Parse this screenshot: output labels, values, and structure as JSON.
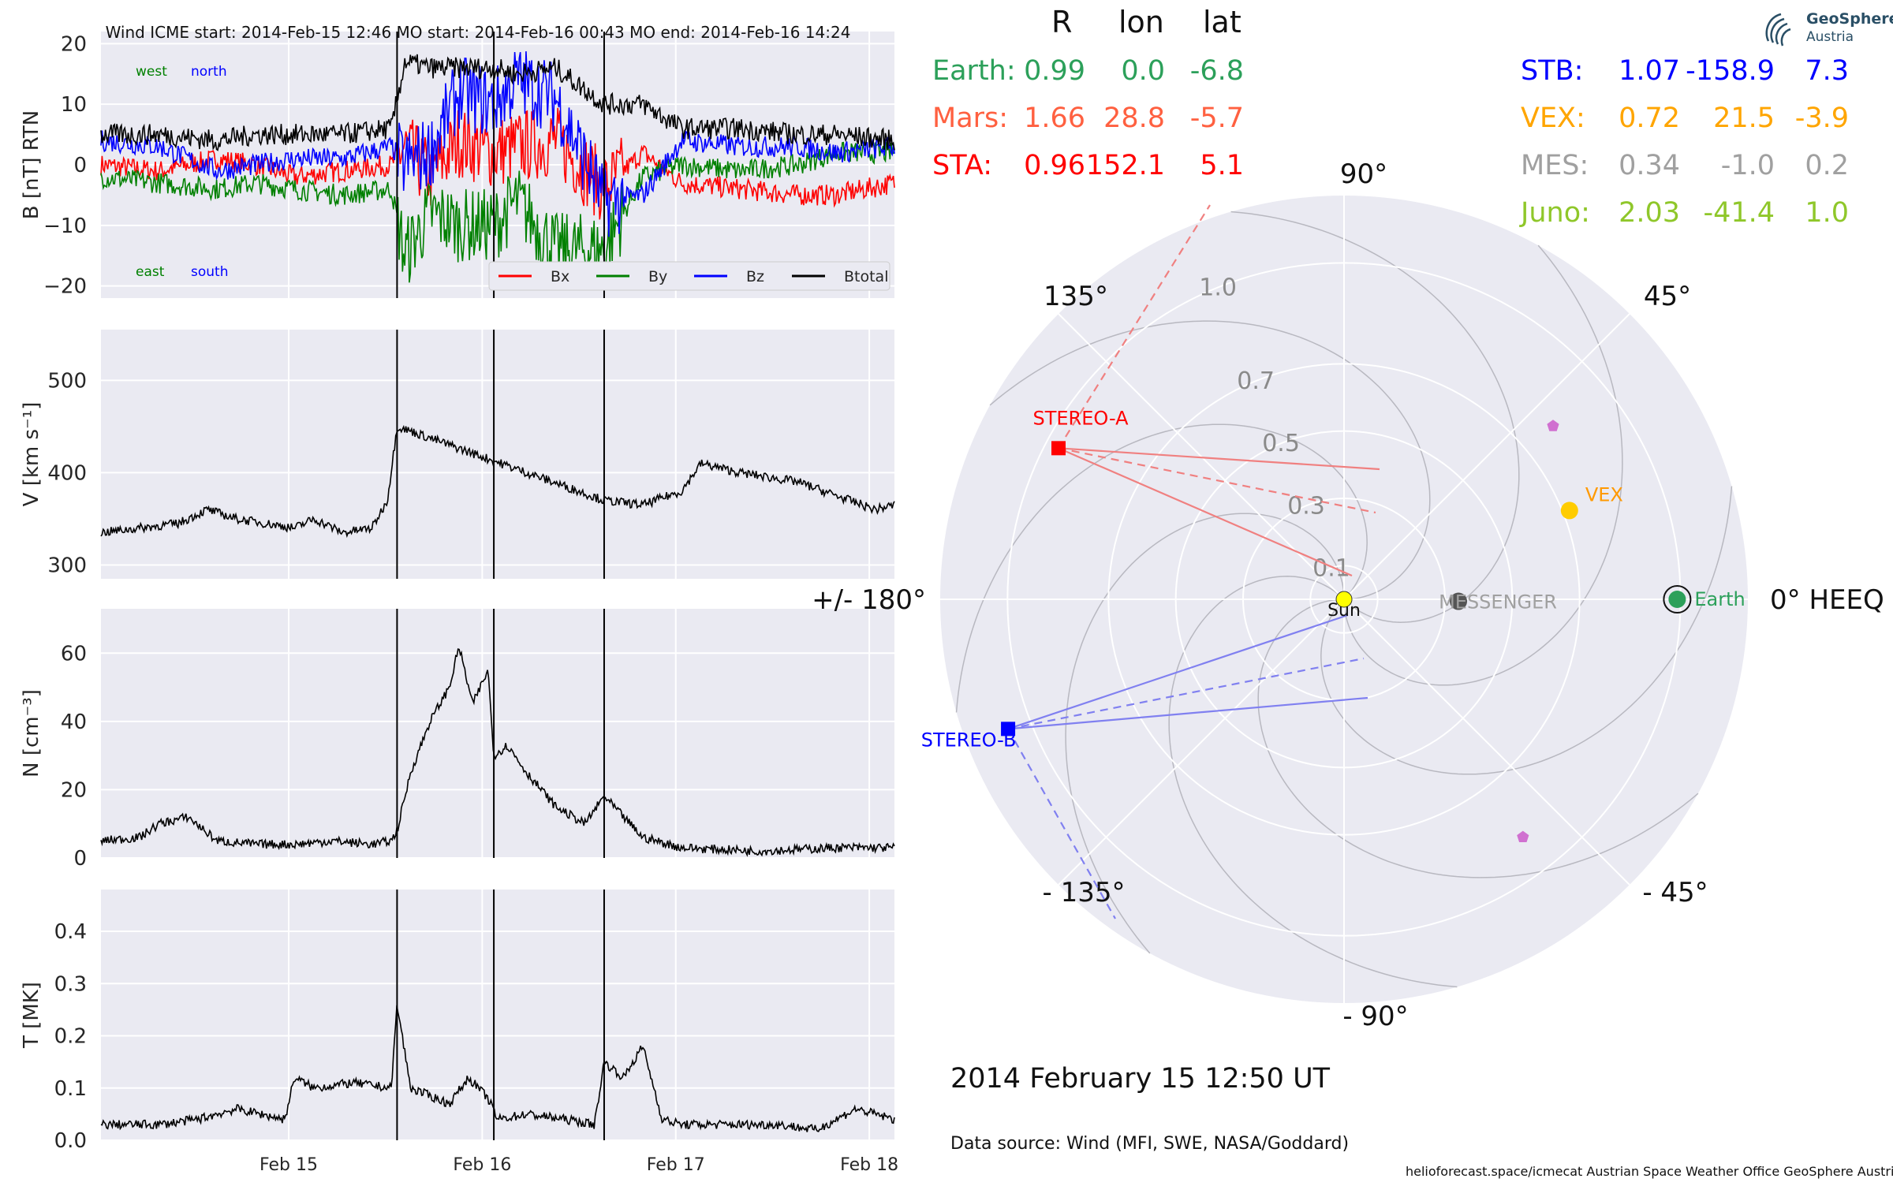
{
  "chart_data": [
    {
      "type": "line",
      "panel": "magnetic-field",
      "title": "Wind    ICME start: 2014-Feb-15 12:46   MO start: 2014-Feb-16 00:43   MO end: 2014-Feb-16 14:24",
      "ylabel": "B [nT] RTN",
      "ylim": [
        -22,
        22
      ],
      "yticks": [
        20,
        10,
        0,
        -10,
        -20
      ],
      "ytick_labels": [
        "20",
        "10",
        "0",
        "−10",
        "−20"
      ],
      "direction_labels": {
        "west": "west",
        "north": "north",
        "east": "east",
        "south": "south"
      },
      "legend": "bottom-right",
      "series": [
        {
          "name": "Bx",
          "color": "#ff0000",
          "t": [
            0,
            0.3,
            0.6,
            0.8,
            1.0,
            1.25,
            1.5,
            1.57,
            1.7,
            1.85,
            2.03,
            2.15,
            2.35,
            2.6,
            2.8,
            3.0,
            3.3,
            3.6,
            3.8,
            4.1
          ],
          "values": [
            0,
            -1,
            1,
            0,
            -2,
            -1,
            0,
            3,
            -2,
            4,
            2,
            3,
            4,
            -4,
            2,
            -3,
            -4,
            -5,
            -5,
            -3
          ]
        },
        {
          "name": "By",
          "color": "#008000",
          "t": [
            0,
            0.3,
            0.6,
            0.8,
            1.0,
            1.25,
            1.5,
            1.57,
            1.7,
            1.85,
            2.03,
            2.15,
            2.35,
            2.6,
            2.8,
            3.0,
            3.3,
            3.6,
            3.8,
            4.1
          ],
          "values": [
            -2,
            -3,
            -4,
            -3,
            -4,
            -5,
            -4,
            -15,
            -8,
            -10,
            -10,
            -6,
            -14,
            -14,
            -2,
            0,
            -1,
            0,
            2,
            2
          ]
        },
        {
          "name": "Bz",
          "color": "#0000ff",
          "t": [
            0,
            0.3,
            0.6,
            0.8,
            1.0,
            1.25,
            1.5,
            1.57,
            1.7,
            1.85,
            2.03,
            2.15,
            2.35,
            2.6,
            2.8,
            3.0,
            3.3,
            3.6,
            3.8,
            4.1
          ],
          "values": [
            4,
            3,
            -1,
            0,
            1,
            1,
            3,
            0,
            2,
            12,
            10,
            14,
            11,
            -6,
            -5,
            4,
            3,
            3,
            2,
            3
          ]
        },
        {
          "name": "Btotal",
          "color": "#000000",
          "t": [
            0,
            0.3,
            0.6,
            0.8,
            1.0,
            1.25,
            1.5,
            1.57,
            1.7,
            1.85,
            2.03,
            2.15,
            2.35,
            2.6,
            2.8,
            3.0,
            3.3,
            3.6,
            3.8,
            4.1
          ],
          "values": [
            5,
            5,
            4,
            5,
            5,
            5,
            6,
            17,
            16,
            16,
            16,
            15,
            16,
            10,
            10,
            6,
            6,
            5,
            5,
            4
          ]
        }
      ],
      "markers": [
        {
          "label": "ICME start",
          "t": 1.53
        },
        {
          "label": "MO start",
          "t": 2.03
        },
        {
          "label": "MO end",
          "t": 2.6
        }
      ],
      "xlim": [
        0,
        4.1
      ]
    },
    {
      "type": "line",
      "panel": "speed",
      "ylabel": "V [km s⁻¹]",
      "ylim": [
        285,
        555
      ],
      "yticks": [
        500,
        400,
        300
      ],
      "ytick_labels": [
        "500",
        "400",
        "300"
      ],
      "series": [
        {
          "name": "",
          "color": "#000000",
          "t": [
            0,
            0.2,
            0.4,
            0.55,
            0.7,
            0.85,
            1.0,
            1.1,
            1.25,
            1.4,
            1.48,
            1.53,
            1.6,
            1.8,
            2.0,
            2.2,
            2.4,
            2.6,
            2.8,
            3.0,
            3.1,
            3.3,
            3.6,
            3.8,
            4.0,
            4.1
          ],
          "values": [
            335,
            340,
            345,
            360,
            350,
            345,
            340,
            350,
            335,
            340,
            370,
            450,
            445,
            430,
            415,
            400,
            385,
            370,
            365,
            380,
            410,
            400,
            390,
            375,
            360,
            365
          ]
        }
      ],
      "markers": [
        {
          "label": "ICME start",
          "t": 1.53
        },
        {
          "label": "MO start",
          "t": 2.03
        },
        {
          "label": "MO end",
          "t": 2.6
        }
      ],
      "xlim": [
        0,
        4.1
      ]
    },
    {
      "type": "line",
      "panel": "density",
      "ylabel": "N [cm⁻³]",
      "ylim": [
        0,
        73
      ],
      "yticks": [
        60,
        40,
        20,
        0
      ],
      "ytick_labels": [
        "60",
        "40",
        "20",
        "0"
      ],
      "series": [
        {
          "name": "",
          "color": "#000000",
          "t": [
            0,
            0.2,
            0.3,
            0.45,
            0.6,
            0.8,
            1.0,
            1.2,
            1.4,
            1.5,
            1.53,
            1.6,
            1.7,
            1.8,
            1.85,
            1.92,
            2.0,
            2.03,
            2.1,
            2.2,
            2.35,
            2.5,
            2.6,
            2.7,
            2.8,
            3.0,
            3.4,
            3.8,
            4.1
          ],
          "values": [
            5,
            6,
            10,
            12,
            5,
            4,
            4,
            5,
            4,
            5,
            8,
            25,
            40,
            50,
            62,
            45,
            55,
            30,
            33,
            25,
            15,
            10,
            18,
            12,
            6,
            3,
            2,
            3,
            3
          ]
        }
      ],
      "markers": [
        {
          "label": "ICME start",
          "t": 1.53
        },
        {
          "label": "MO start",
          "t": 2.03
        },
        {
          "label": "MO end",
          "t": 2.6
        }
      ],
      "xlim": [
        0,
        4.1
      ]
    },
    {
      "type": "line",
      "panel": "temperature",
      "ylabel": "T [MK]",
      "ylim": [
        0,
        0.48
      ],
      "yticks": [
        0.4,
        0.3,
        0.2,
        0.1,
        0.0
      ],
      "ytick_labels": [
        "0.4",
        "0.3",
        "0.2",
        "0.1",
        "0.0"
      ],
      "xticks": [
        0.97,
        1.97,
        2.97,
        3.97
      ],
      "xtick_labels": [
        "Feb 15",
        "Feb 16",
        "Feb 17",
        "Feb 18"
      ],
      "series": [
        {
          "name": "",
          "color": "#000000",
          "t": [
            0,
            0.3,
            0.5,
            0.7,
            0.95,
            1.0,
            1.1,
            1.3,
            1.5,
            1.53,
            1.6,
            1.8,
            1.9,
            2.0,
            2.05,
            2.2,
            2.4,
            2.55,
            2.6,
            2.7,
            2.8,
            2.9,
            3.0,
            3.3,
            3.5,
            3.7,
            3.9,
            4.1
          ],
          "values": [
            0.03,
            0.03,
            0.04,
            0.06,
            0.04,
            0.12,
            0.1,
            0.11,
            0.1,
            0.26,
            0.1,
            0.07,
            0.12,
            0.08,
            0.04,
            0.05,
            0.04,
            0.03,
            0.15,
            0.12,
            0.18,
            0.04,
            0.03,
            0.03,
            0.03,
            0.02,
            0.06,
            0.04
          ]
        }
      ],
      "markers": [
        {
          "label": "ICME start",
          "t": 1.53
        },
        {
          "label": "MO start",
          "t": 2.03
        },
        {
          "label": "MO end",
          "t": 2.6
        }
      ],
      "xlim": [
        0,
        4.1
      ]
    },
    {
      "type": "scatter",
      "panel": "polar-position-plot",
      "coordinate_system": "HEEQ",
      "angle_labels": [
        "90°",
        "45°",
        "0° HEEQ",
        "- 45°",
        "- 90°",
        "- 135°",
        "+/- 180°",
        "135°"
      ],
      "radial_ticks": [
        0.1,
        0.3,
        0.5,
        0.7,
        1.0
      ],
      "radial_tick_labels": [
        "0.1",
        "0.3",
        "0.5",
        "0.7",
        "1.0"
      ],
      "rlim": [
        0,
        1.2
      ],
      "objects": [
        {
          "name": "Sun",
          "r": 0.0,
          "lon": 0.0,
          "color": "#ffff00"
        },
        {
          "name": "Earth",
          "r": 0.99,
          "lon": 0.0,
          "color": "#2ca05a"
        },
        {
          "name": "VEX",
          "r": 0.72,
          "lon": 21.5,
          "color": "#ffcc00",
          "label_color": "#ff9900"
        },
        {
          "name": "MESSENGER",
          "r": 0.34,
          "lon": -1.0,
          "color": "#555555",
          "label_color": "#a0a0a0"
        },
        {
          "name": "STEREO-A",
          "r": 0.96,
          "lon": 152.1,
          "color": "#ff0000"
        },
        {
          "name": "STEREO-B",
          "r": 1.07,
          "lon": -158.9,
          "color": "#0000ff"
        },
        {
          "name": "Mars-marker",
          "r": 1.66,
          "lon": 28.8,
          "color": "#d070d0"
        },
        {
          "name": "Juno-marker",
          "r": 2.03,
          "lon": -41.4,
          "color": "#d070d0"
        }
      ]
    }
  ],
  "positions_table": {
    "headers": [
      "R",
      "lon",
      "lat"
    ],
    "left": [
      {
        "name": "Earth:",
        "R": "0.99",
        "lon": "0.0",
        "lat": "-6.8",
        "color": "#2ca05a"
      },
      {
        "name": "Mars:",
        "R": "1.66",
        "lon": "28.8",
        "lat": "-5.7",
        "color": "#ff6040"
      },
      {
        "name": "STA:",
        "R": "0.96",
        "lon": "152.1",
        "lat": "5.1",
        "color": "#ff0000"
      }
    ],
    "right": [
      {
        "name": "STB:",
        "R": "1.07",
        "lon": "-158.9",
        "lat": "7.3",
        "color": "#0000ff"
      },
      {
        "name": "VEX:",
        "R": "0.72",
        "lon": "21.5",
        "lat": "-3.9",
        "color": "#ffa500"
      },
      {
        "name": "MES:",
        "R": "0.34",
        "lon": "-1.0",
        "lat": "0.2",
        "color": "#a0a0a0"
      },
      {
        "name": "Juno:",
        "R": "2.03",
        "lon": "-41.4",
        "lat": "1.0",
        "color": "#8fc72a"
      }
    ]
  },
  "date_text": "2014 February 15  12:50 UT",
  "source_text": "Data source: Wind (MFI, SWE, NASA/Goddard)",
  "footer_text": "helioforecast.space/icmecat   Austrian Space Weather Office   GeoSphere Austria",
  "logo": {
    "line1": "GeoSphere",
    "line2": "Austria"
  }
}
